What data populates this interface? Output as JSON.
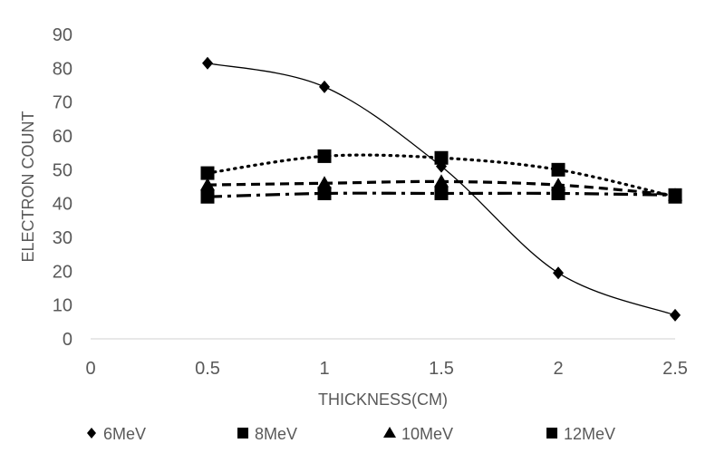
{
  "chart_data": {
    "type": "scatter",
    "title": "",
    "xlabel": "THICKNESS(CM)",
    "ylabel": "ELECTRON COUNT",
    "xlim": [
      0,
      2.5
    ],
    "ylim": [
      0,
      90
    ],
    "xticks": [
      0,
      0.5,
      1,
      1.5,
      2,
      2.5
    ],
    "xtick_labels": [
      "0",
      "0.5",
      "1",
      "1.5",
      "2",
      "2.5"
    ],
    "yticks": [
      0,
      10,
      20,
      30,
      40,
      50,
      60,
      70,
      80,
      90
    ],
    "ytick_labels": [
      "0",
      "10",
      "20",
      "30",
      "40",
      "50",
      "60",
      "70",
      "80",
      "90"
    ],
    "grid": false,
    "legend": "bottom",
    "x": [
      0.5,
      1,
      1.5,
      2,
      2.5
    ],
    "series": [
      {
        "name": "6MeV",
        "marker": "diamond",
        "line": "solid",
        "values": [
          81.5,
          74.5,
          51,
          19.5,
          7
        ]
      },
      {
        "name": "8MeV",
        "marker": "square",
        "line": "dotted",
        "values": [
          49,
          54,
          53.5,
          50,
          42
        ]
      },
      {
        "name": "10MeV",
        "marker": "triangle",
        "line": "dashed",
        "values": [
          45.5,
          46,
          46.5,
          45.5,
          42.5
        ]
      },
      {
        "name": "12MeV",
        "marker": "square",
        "line": "dash-dot",
        "values": [
          42,
          43,
          43,
          43,
          42.5
        ]
      }
    ]
  }
}
